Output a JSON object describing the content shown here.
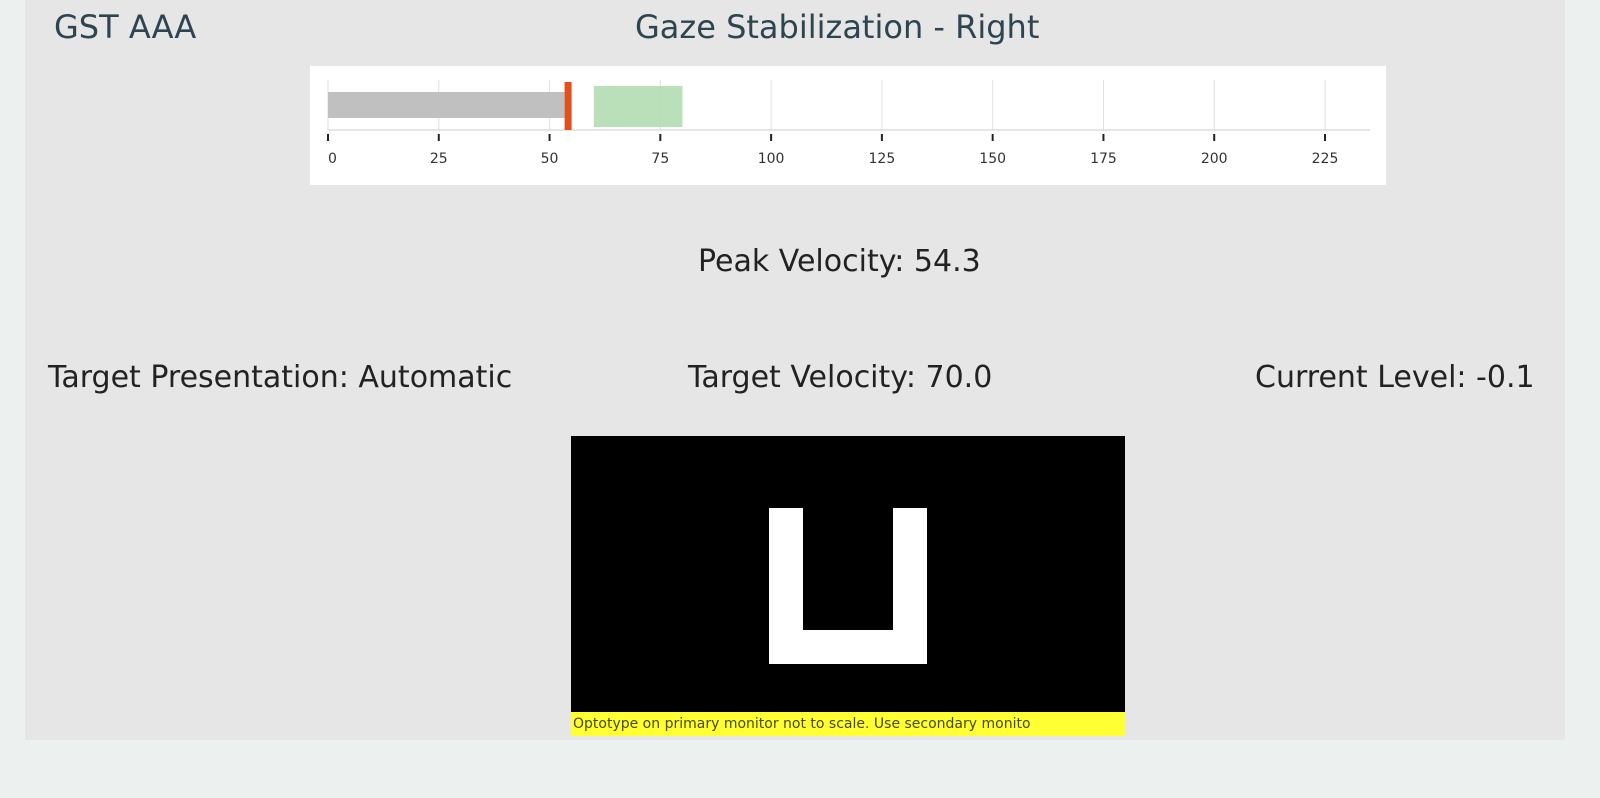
{
  "header": {
    "patient_id": "GST AAA",
    "title": "Gaze Stabilization - Right"
  },
  "chart_data": {
    "type": "bar",
    "orientation": "horizontal bullet",
    "xlim": [
      0,
      235
    ],
    "ticks": [
      0,
      25,
      50,
      75,
      100,
      125,
      150,
      175,
      200,
      225
    ],
    "tick_labels": [
      "0",
      "25",
      "50",
      "75",
      "100",
      "125",
      "150",
      "175",
      "200",
      "225"
    ],
    "value": 54.3,
    "target_range": [
      60,
      80
    ],
    "grid": true,
    "colors": {
      "bar": "#c0c0c0",
      "marker": "#e2501e",
      "target": "#b3ddb3"
    }
  },
  "stats": {
    "peak_velocity": "Peak Velocity: 54.3",
    "target_presentation": "Target Presentation: Automatic",
    "target_velocity": "Target Velocity: 70.0",
    "current_level": "Current Level: -0.1"
  },
  "optotype": {
    "letter": "U",
    "warning": "Optotype on primary monitor not to scale. Use secondary monito"
  }
}
